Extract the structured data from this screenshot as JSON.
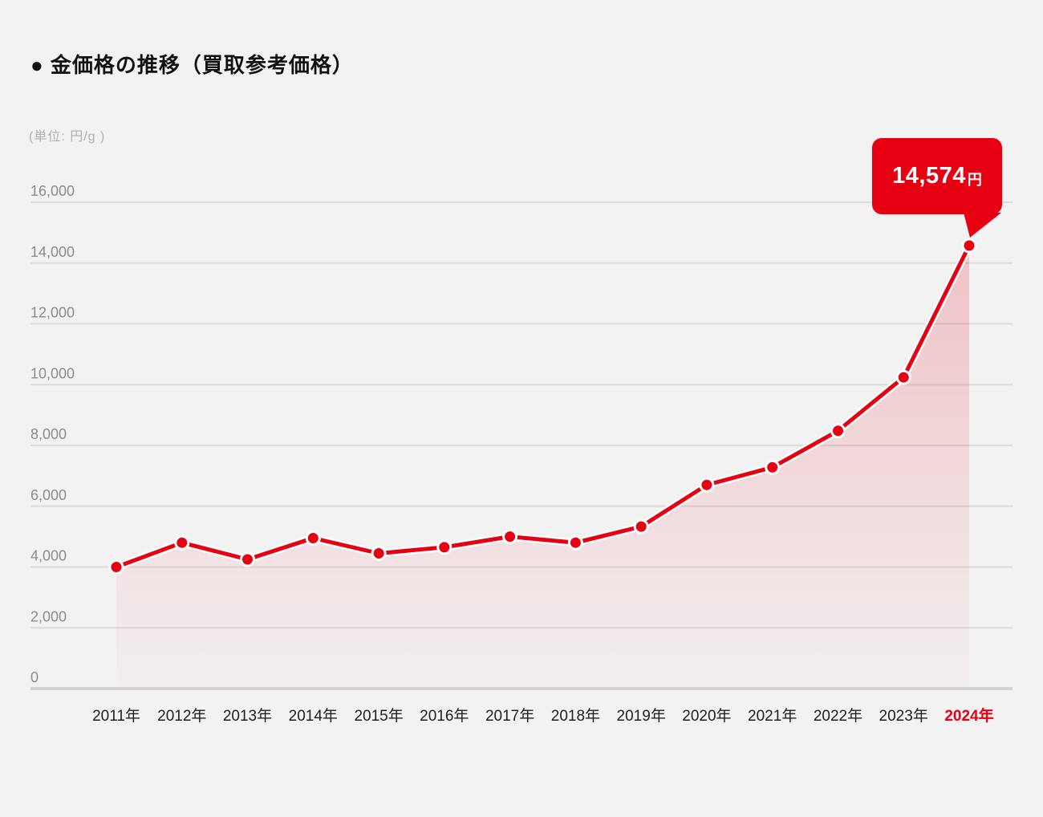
{
  "page": {
    "background_color": "#f2f2f2",
    "accent_color": "#e60012"
  },
  "header": {
    "title": "● 金価格の推移（買取参考価格）"
  },
  "chart": {
    "unit_label": "(単位: 円/g )",
    "callout": {
      "value": "14,574",
      "suffix": "円"
    }
  },
  "chart_data": {
    "type": "area",
    "title": "金価格の推移（買取参考価格）",
    "unit": "円/g",
    "categories": [
      "2011年",
      "2012年",
      "2013年",
      "2014年",
      "2015年",
      "2016年",
      "2017年",
      "2018年",
      "2019年",
      "2020年",
      "2021年",
      "2022年",
      "2023年",
      "2024年"
    ],
    "values": [
      4000,
      4800,
      4250,
      4950,
      4450,
      4650,
      5000,
      4800,
      5330,
      6700,
      7280,
      8480,
      10240,
      14574
    ],
    "ylim": [
      0,
      16000
    ],
    "ytick_step": 2000,
    "ytick_labels": [
      "0",
      "2,000",
      "4,000",
      "6,000",
      "8,000",
      "10,000",
      "12,000",
      "14,000",
      "16,000"
    ],
    "grid": true,
    "line_color": "#e60012",
    "marker_color": "#e60012",
    "marker_ring_color": "#ffffff",
    "area_gradient_top": "rgba(230,0,18,0.20)",
    "area_gradient_bottom": "rgba(230,0,18,0.01)",
    "highlight_last_category": true,
    "annotation": {
      "category": "2024年",
      "label": "14,574円"
    }
  }
}
